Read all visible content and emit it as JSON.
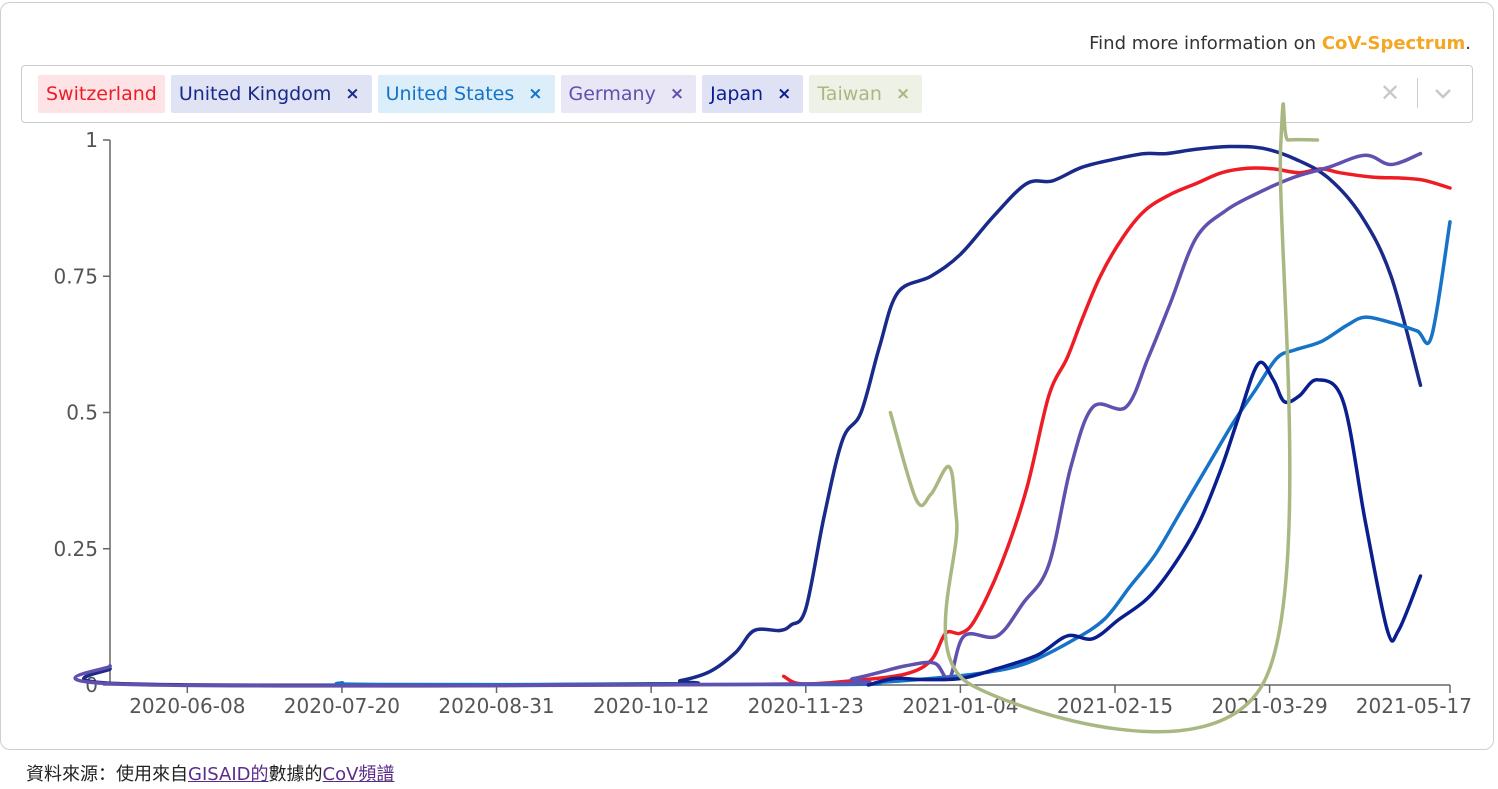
{
  "info": {
    "prefix": "Find more information on ",
    "link": "CoV-Spectrum",
    "suffix": "."
  },
  "selector": {
    "chips": [
      {
        "label": "Switzerland",
        "removable": false,
        "bg": "#fde3e5",
        "fg": "#ee1c25"
      },
      {
        "label": "United Kingdom",
        "removable": true,
        "bg": "#dfe3f3",
        "fg": "#1a2a8a"
      },
      {
        "label": "United States",
        "removable": true,
        "bg": "#dbeef9",
        "fg": "#1673c8"
      },
      {
        "label": "Germany",
        "removable": true,
        "bg": "#e9e6f5",
        "fg": "#6150ad"
      },
      {
        "label": "Japan",
        "removable": true,
        "bg": "#dfe2f5",
        "fg": "#0a1f8f"
      },
      {
        "label": "Taiwan",
        "removable": true,
        "bg": "#eef1e6",
        "fg": "#a9b882"
      }
    ],
    "remove_glyph": "×"
  },
  "footer": {
    "prefix": "資料來源：使用來自",
    "link1": "GISAID的",
    "middle": "數據的",
    "link2": "CoV頻譜"
  },
  "chart_data": {
    "type": "line",
    "xlim": [
      "2020-05-18",
      "2021-05-17"
    ],
    "ylim": [
      0,
      1
    ],
    "y_ticks": [
      "0",
      "0.25",
      "0.5",
      "0.75",
      "1"
    ],
    "x_ticks": [
      "2020-06-08",
      "2020-07-20",
      "2020-08-31",
      "2020-10-12",
      "2020-11-23",
      "2021-01-04",
      "2021-02-15",
      "2021-03-29",
      "2021-05-17"
    ],
    "series": [
      {
        "name": "Switzerland",
        "color": "#ee1c25",
        "points": [
          [
            "2020-11-17",
            0.016
          ],
          [
            "2020-11-22",
            0.002
          ],
          [
            "2020-12-06",
            0.008
          ],
          [
            "2020-12-20",
            0.02
          ],
          [
            "2020-12-27",
            0.045
          ],
          [
            "2020-12-31",
            0.095
          ],
          [
            "2021-01-04",
            0.095
          ],
          [
            "2021-01-08",
            0.12
          ],
          [
            "2021-01-15",
            0.22
          ],
          [
            "2021-01-22",
            0.36
          ],
          [
            "2021-01-28",
            0.53
          ],
          [
            "2021-02-02",
            0.6
          ],
          [
            "2021-02-06",
            0.67
          ],
          [
            "2021-02-11",
            0.75
          ],
          [
            "2021-02-17",
            0.82
          ],
          [
            "2021-02-23",
            0.87
          ],
          [
            "2021-03-02",
            0.9
          ],
          [
            "2021-03-09",
            0.92
          ],
          [
            "2021-03-16",
            0.94
          ],
          [
            "2021-03-23",
            0.948
          ],
          [
            "2021-03-30",
            0.947
          ],
          [
            "2021-04-06",
            0.94
          ],
          [
            "2021-04-12",
            0.947
          ],
          [
            "2021-04-17",
            0.94
          ],
          [
            "2021-04-26",
            0.932
          ],
          [
            "2021-05-04",
            0.93
          ],
          [
            "2021-05-10",
            0.926
          ],
          [
            "2021-05-17",
            0.912
          ]
        ]
      },
      {
        "name": "United Kingdom",
        "color": "#1a2a8a",
        "points": [
          [
            "2020-05-18",
            0.03
          ],
          [
            "2020-05-23",
            0.002
          ],
          [
            "2020-10-12",
            0.002
          ],
          [
            "2020-10-20",
            0.008
          ],
          [
            "2020-10-28",
            0.025
          ],
          [
            "2020-11-04",
            0.06
          ],
          [
            "2020-11-09",
            0.1
          ],
          [
            "2020-11-16",
            0.1
          ],
          [
            "2020-11-19",
            0.11
          ],
          [
            "2020-11-23",
            0.14
          ],
          [
            "2020-11-28",
            0.31
          ],
          [
            "2020-12-03",
            0.45
          ],
          [
            "2020-12-08",
            0.5
          ],
          [
            "2020-12-13",
            0.62
          ],
          [
            "2020-12-18",
            0.72
          ],
          [
            "2020-12-27",
            0.75
          ],
          [
            "2021-01-04",
            0.79
          ],
          [
            "2021-01-13",
            0.86
          ],
          [
            "2021-01-22",
            0.92
          ],
          [
            "2021-01-29",
            0.925
          ],
          [
            "2021-02-06",
            0.95
          ],
          [
            "2021-02-15",
            0.965
          ],
          [
            "2021-02-23",
            0.975
          ],
          [
            "2021-03-01",
            0.975
          ],
          [
            "2021-03-09",
            0.983
          ],
          [
            "2021-03-18",
            0.988
          ],
          [
            "2021-03-27",
            0.985
          ],
          [
            "2021-04-05",
            0.965
          ],
          [
            "2021-04-14",
            0.93
          ],
          [
            "2021-04-23",
            0.86
          ],
          [
            "2021-05-01",
            0.75
          ],
          [
            "2021-05-09",
            0.55
          ]
        ]
      },
      {
        "name": "United States",
        "color": "#1673c8",
        "points": [
          [
            "2020-07-20",
            0.004
          ],
          [
            "2020-08-01",
            0.001
          ],
          [
            "2020-11-30",
            0.001
          ],
          [
            "2020-12-13",
            0.005
          ],
          [
            "2020-12-27",
            0.012
          ],
          [
            "2021-01-10",
            0.022
          ],
          [
            "2021-01-22",
            0.04
          ],
          [
            "2021-02-03",
            0.08
          ],
          [
            "2021-02-12",
            0.12
          ],
          [
            "2021-02-19",
            0.18
          ],
          [
            "2021-02-26",
            0.24
          ],
          [
            "2021-03-05",
            0.32
          ],
          [
            "2021-03-12",
            0.4
          ],
          [
            "2021-03-19",
            0.48
          ],
          [
            "2021-03-25",
            0.54
          ],
          [
            "2021-03-31",
            0.6
          ],
          [
            "2021-04-05",
            0.615
          ],
          [
            "2021-04-12",
            0.63
          ],
          [
            "2021-04-19",
            0.66
          ],
          [
            "2021-04-24",
            0.675
          ],
          [
            "2021-05-01",
            0.665
          ],
          [
            "2021-05-08",
            0.65
          ],
          [
            "2021-05-12",
            0.64
          ],
          [
            "2021-05-17",
            0.85
          ]
        ]
      },
      {
        "name": "Germany",
        "color": "#6150ad",
        "points": [
          [
            "2020-05-18",
            0.035
          ],
          [
            "2020-05-24",
            0.001
          ],
          [
            "2020-11-23",
            0.002
          ],
          [
            "2020-12-06",
            0.012
          ],
          [
            "2020-12-20",
            0.035
          ],
          [
            "2020-12-28",
            0.04
          ],
          [
            "2021-01-01",
            0.012
          ],
          [
            "2021-01-05",
            0.09
          ],
          [
            "2021-01-14",
            0.09
          ],
          [
            "2021-01-21",
            0.15
          ],
          [
            "2021-01-28",
            0.22
          ],
          [
            "2021-02-03",
            0.4
          ],
          [
            "2021-02-09",
            0.51
          ],
          [
            "2021-02-18",
            0.51
          ],
          [
            "2021-02-24",
            0.6
          ],
          [
            "2021-03-02",
            0.7
          ],
          [
            "2021-03-09",
            0.82
          ],
          [
            "2021-03-17",
            0.87
          ],
          [
            "2021-03-25",
            0.9
          ],
          [
            "2021-04-04",
            0.93
          ],
          [
            "2021-04-14",
            0.95
          ],
          [
            "2021-04-24",
            0.972
          ],
          [
            "2021-05-01",
            0.955
          ],
          [
            "2021-05-09",
            0.975
          ]
        ]
      },
      {
        "name": "Japan",
        "color": "#0a1f8f",
        "points": [
          [
            "2020-12-10",
            0.0
          ],
          [
            "2020-12-17",
            0.012
          ],
          [
            "2020-12-24",
            0.01
          ],
          [
            "2021-01-04",
            0.012
          ],
          [
            "2021-01-14",
            0.03
          ],
          [
            "2021-01-25",
            0.055
          ],
          [
            "2021-02-02",
            0.09
          ],
          [
            "2021-02-09",
            0.085
          ],
          [
            "2021-02-16",
            0.12
          ],
          [
            "2021-02-24",
            0.16
          ],
          [
            "2021-03-03",
            0.22
          ],
          [
            "2021-03-10",
            0.3
          ],
          [
            "2021-03-16",
            0.4
          ],
          [
            "2021-03-21",
            0.5
          ],
          [
            "2021-03-26",
            0.59
          ],
          [
            "2021-03-30",
            0.56
          ],
          [
            "2021-04-02",
            0.52
          ],
          [
            "2021-04-06",
            0.53
          ],
          [
            "2021-04-11",
            0.56
          ],
          [
            "2021-04-18",
            0.52
          ],
          [
            "2021-04-24",
            0.3
          ],
          [
            "2021-04-30",
            0.1
          ],
          [
            "2021-05-03",
            0.1
          ],
          [
            "2021-05-09",
            0.2
          ]
        ]
      },
      {
        "name": "Taiwan",
        "color": "#a9b882",
        "points": [
          [
            "2020-12-16",
            0.5
          ],
          [
            "2020-12-23",
            0.34
          ],
          [
            "2020-12-27",
            0.35
          ],
          [
            "2021-01-01",
            0.4
          ],
          [
            "2021-01-03",
            0.3
          ],
          [
            "2021-01-07",
            0.0
          ],
          [
            "2021-03-27",
            0.0
          ],
          [
            "2021-04-01",
            0.99
          ],
          [
            "2021-04-03",
            1.0
          ],
          [
            "2021-04-11",
            1.0
          ]
        ]
      }
    ]
  }
}
